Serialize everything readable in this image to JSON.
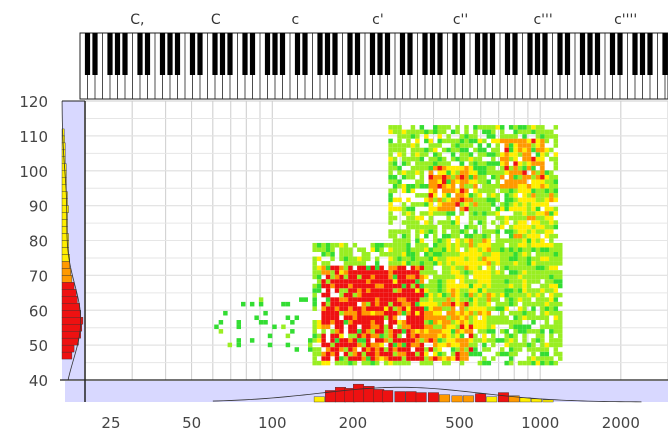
{
  "chart_data": {
    "type": "heatmap",
    "x_scale": "log",
    "x_ticks": [
      "25",
      "50",
      "100",
      "200",
      "500",
      "1000",
      "2000"
    ],
    "y_ticks": [
      "40",
      "50",
      "60",
      "70",
      "80",
      "90",
      "100",
      "110",
      "120"
    ],
    "ylim": [
      40,
      120
    ],
    "xlim": [
      20,
      3000
    ],
    "octave_labels": [
      "C,",
      "C",
      "c",
      "c'",
      "c''",
      "c'''",
      "c''''"
    ],
    "grid": true,
    "colors": {
      "low": "#33dd33",
      "mid_low": "#99ee22",
      "mid": "#ffee00",
      "high": "#ff9900",
      "max": "#ee1111",
      "marginal_bg": "#d8d8ff",
      "grid": "#cccccc"
    },
    "regions": [
      {
        "x": [
          140,
          1200
        ],
        "y": [
          44,
          78
        ],
        "level": 1
      },
      {
        "x": [
          270,
          1150
        ],
        "y": [
          60,
          112
        ],
        "level": 1
      },
      {
        "x": [
          150,
          360
        ],
        "y": [
          46,
          72
        ],
        "level": 4
      },
      {
        "x": [
          190,
          330
        ],
        "y": [
          58,
          70
        ],
        "level": 4
      },
      {
        "x": [
          320,
          550
        ],
        "y": [
          46,
          62
        ],
        "level": 3
      },
      {
        "x": [
          380,
          560
        ],
        "y": [
          88,
          100
        ],
        "level": 3
      },
      {
        "x": [
          700,
          1000
        ],
        "y": [
          95,
          108
        ],
        "level": 3
      },
      {
        "x": [
          450,
          650
        ],
        "y": [
          55,
          80
        ],
        "level": 2
      },
      {
        "x": [
          800,
          1100
        ],
        "y": [
          78,
          96
        ],
        "level": 2
      },
      {
        "x": [
          60,
          140
        ],
        "y": [
          48,
          63
        ],
        "level": 0
      }
    ],
    "x_marginal": [
      {
        "x": 150,
        "v": 0.25,
        "c": "#ffee00"
      },
      {
        "x": 165,
        "v": 0.55,
        "c": "#ee1111"
      },
      {
        "x": 180,
        "v": 0.7,
        "c": "#ee1111"
      },
      {
        "x": 195,
        "v": 0.65,
        "c": "#ee1111"
      },
      {
        "x": 210,
        "v": 0.85,
        "c": "#ee1111"
      },
      {
        "x": 230,
        "v": 0.75,
        "c": "#ee1111"
      },
      {
        "x": 250,
        "v": 0.6,
        "c": "#ee1111"
      },
      {
        "x": 270,
        "v": 0.55,
        "c": "#ee1111"
      },
      {
        "x": 300,
        "v": 0.5,
        "c": "#ee1111"
      },
      {
        "x": 330,
        "v": 0.5,
        "c": "#ee1111"
      },
      {
        "x": 360,
        "v": 0.45,
        "c": "#ee1111"
      },
      {
        "x": 400,
        "v": 0.45,
        "c": "#ee1111"
      },
      {
        "x": 440,
        "v": 0.35,
        "c": "#ff9900"
      },
      {
        "x": 490,
        "v": 0.3,
        "c": "#ff9900"
      },
      {
        "x": 540,
        "v": 0.3,
        "c": "#ff9900"
      },
      {
        "x": 600,
        "v": 0.4,
        "c": "#ee1111"
      },
      {
        "x": 660,
        "v": 0.25,
        "c": "#ffee00"
      },
      {
        "x": 730,
        "v": 0.45,
        "c": "#ee1111"
      },
      {
        "x": 800,
        "v": 0.3,
        "c": "#ff9900"
      },
      {
        "x": 880,
        "v": 0.2,
        "c": "#ffee00"
      },
      {
        "x": 970,
        "v": 0.15,
        "c": "#ffee00"
      },
      {
        "x": 1070,
        "v": 0.1,
        "c": "#ffee00"
      }
    ],
    "y_marginal": [
      {
        "y": 47,
        "v": 0.45,
        "c": "#ee1111"
      },
      {
        "y": 49,
        "v": 0.55,
        "c": "#ee1111"
      },
      {
        "y": 51,
        "v": 0.75,
        "c": "#ee1111"
      },
      {
        "y": 53,
        "v": 0.85,
        "c": "#ee1111"
      },
      {
        "y": 55,
        "v": 0.9,
        "c": "#ee1111"
      },
      {
        "y": 57,
        "v": 0.95,
        "c": "#ee1111"
      },
      {
        "y": 59,
        "v": 0.85,
        "c": "#ee1111"
      },
      {
        "y": 61,
        "v": 0.8,
        "c": "#ee1111"
      },
      {
        "y": 63,
        "v": 0.7,
        "c": "#ee1111"
      },
      {
        "y": 65,
        "v": 0.65,
        "c": "#ee1111"
      },
      {
        "y": 67,
        "v": 0.55,
        "c": "#ee1111"
      },
      {
        "y": 69,
        "v": 0.45,
        "c": "#ff9900"
      },
      {
        "y": 71,
        "v": 0.4,
        "c": "#ff9900"
      },
      {
        "y": 73,
        "v": 0.35,
        "c": "#ff9900"
      },
      {
        "y": 75,
        "v": 0.35,
        "c": "#ffee00"
      },
      {
        "y": 77,
        "v": 0.3,
        "c": "#ffee00"
      },
      {
        "y": 79,
        "v": 0.3,
        "c": "#ffee00"
      },
      {
        "y": 81,
        "v": 0.3,
        "c": "#ffee00"
      },
      {
        "y": 83,
        "v": 0.25,
        "c": "#ffee00"
      },
      {
        "y": 85,
        "v": 0.25,
        "c": "#ffee00"
      },
      {
        "y": 87,
        "v": 0.25,
        "c": "#ffee00"
      },
      {
        "y": 89,
        "v": 0.3,
        "c": "#ffee00"
      },
      {
        "y": 91,
        "v": 0.25,
        "c": "#ffee00"
      },
      {
        "y": 93,
        "v": 0.25,
        "c": "#ffee00"
      },
      {
        "y": 95,
        "v": 0.2,
        "c": "#ffee00"
      },
      {
        "y": 97,
        "v": 0.2,
        "c": "#ffee00"
      },
      {
        "y": 99,
        "v": 0.2,
        "c": "#ffee00"
      },
      {
        "y": 101,
        "v": 0.2,
        "c": "#ffee00"
      },
      {
        "y": 103,
        "v": 0.15,
        "c": "#ffee00"
      },
      {
        "y": 105,
        "v": 0.15,
        "c": "#ffee00"
      },
      {
        "y": 107,
        "v": 0.15,
        "c": "#ffee00"
      },
      {
        "y": 109,
        "v": 0.12,
        "c": "#ffee00"
      },
      {
        "y": 111,
        "v": 0.1,
        "c": "#ffee00"
      }
    ]
  }
}
